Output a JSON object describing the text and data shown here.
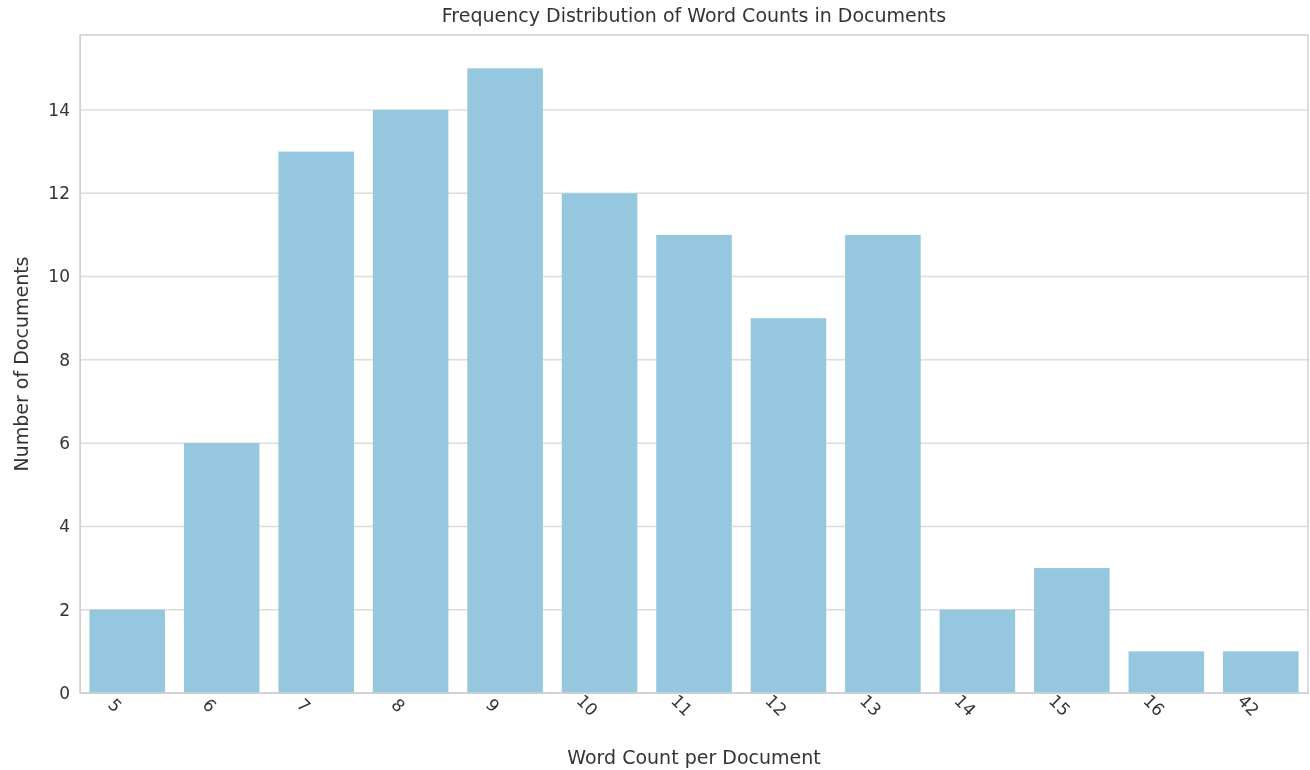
{
  "chart_data": {
    "type": "bar",
    "title": "Frequency Distribution of Word Counts in Documents",
    "xlabel": "Word Count per Document",
    "ylabel": "Number of Documents",
    "categories": [
      "5",
      "6",
      "7",
      "8",
      "9",
      "10",
      "11",
      "12",
      "13",
      "14",
      "15",
      "16",
      "42"
    ],
    "values": [
      2,
      6,
      13,
      14,
      15,
      12,
      11,
      9,
      11,
      2,
      3,
      1,
      1
    ],
    "color": "#95c8de",
    "ylim": [
      0,
      15.8
    ],
    "yticks": [
      0,
      2,
      4,
      6,
      8,
      10,
      12,
      14
    ],
    "grid": "y"
  }
}
